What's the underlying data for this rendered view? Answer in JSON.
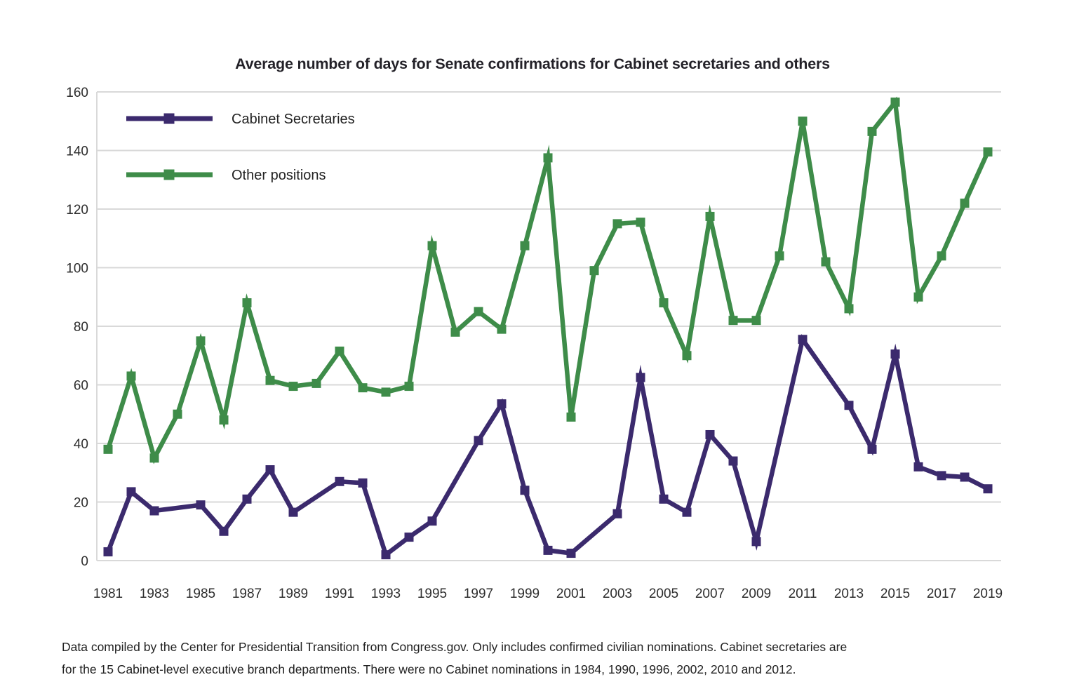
{
  "title": "Average number of days for Senate confirmations for Cabinet secretaries and others",
  "legend": {
    "items": [
      {
        "label": "Cabinet Secretaries",
        "color": "#3b2a6d"
      },
      {
        "label": "Other positions",
        "color": "#3e8c49"
      }
    ]
  },
  "caption": {
    "lines": [
      "Data compiled by the Center for Presidential Transition from Congress.gov. Only includes confirmed civilian nominations. Cabinet secretaries are",
      "for the 15 Cabinet-level executive branch departments. There were no Cabinet nominations in 1984, 1990, 1996, 2002, 2010 and 2012."
    ]
  },
  "colors": {
    "cabinet_secretaries": "#3b2a6d",
    "other_positions": "#3e8c49",
    "gridline": "#d9d9d9",
    "text": "#2d2d2d"
  },
  "chart_data": {
    "type": "line",
    "title": "Average number of days for Senate confirmations for Cabinet secretaries and others",
    "xlabel": "",
    "ylabel": "",
    "ylim": [
      0,
      160
    ],
    "yticks": [
      0,
      20,
      40,
      60,
      80,
      100,
      120,
      140,
      160
    ],
    "grid": "horizontal",
    "legend_position": "top-left-inside",
    "marker": "square",
    "x": [
      1981,
      1982,
      1983,
      1984,
      1985,
      1986,
      1987,
      1988,
      1989,
      1990,
      1991,
      1992,
      1993,
      1994,
      1995,
      1996,
      1997,
      1998,
      1999,
      2000,
      2001,
      2002,
      2003,
      2004,
      2005,
      2006,
      2007,
      2008,
      2009,
      2010,
      2011,
      2012,
      2013,
      2014,
      2015,
      2016,
      2017,
      2018,
      2019
    ],
    "xtick_labels": [
      "1981",
      "1983",
      "1985",
      "1987",
      "1989",
      "1991",
      "1993",
      "1995",
      "1997",
      "1999",
      "2001",
      "2003",
      "2005",
      "2007",
      "2009",
      "2011",
      "2013",
      "2015",
      "2017",
      "2019"
    ],
    "series": [
      {
        "name": "Cabinet Secretaries",
        "color": "#3b2a6d",
        "values": [
          3,
          23.5,
          17,
          null,
          19,
          10,
          21,
          31,
          16.5,
          null,
          27,
          26.5,
          2,
          8,
          13.5,
          null,
          41,
          53.5,
          24,
          3.5,
          2.5,
          null,
          16,
          62.5,
          21,
          16.5,
          43,
          34,
          6.5,
          null,
          75.5,
          null,
          53,
          38,
          70.5,
          32,
          29,
          28.5,
          24.5
        ]
      },
      {
        "name": "Other positions",
        "color": "#3e8c49",
        "values": [
          38,
          63,
          35,
          50,
          75,
          48,
          88,
          61.5,
          59.5,
          60.5,
          71.5,
          59,
          57.5,
          59.5,
          107.5,
          78,
          85,
          79,
          107.5,
          137.5,
          49,
          99,
          115,
          115.5,
          88,
          70,
          117.5,
          82,
          82,
          104,
          150,
          102,
          86,
          146.5,
          156.5,
          90,
          104,
          122,
          139.5
        ]
      }
    ]
  }
}
